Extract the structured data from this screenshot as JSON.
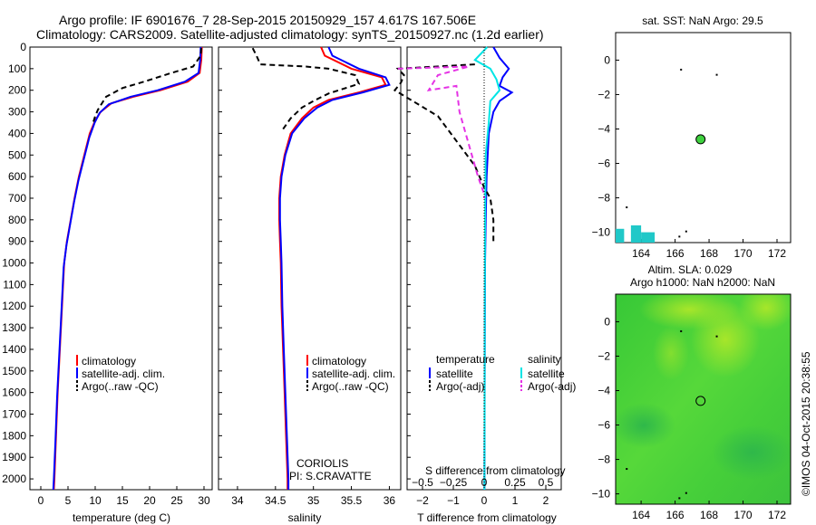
{
  "header": {
    "line1": "Argo profile: IF 6901676_7 28-Sep-2015 20150929_157 4.617S 167.506E",
    "line2": "Climatology: CARS2009. Satellite-adjusted climatology: synTS_20150927.nc (1.2d earlier)"
  },
  "colors": {
    "climatology": "#ff0000",
    "satellite": "#0000ff",
    "argo": "#000000",
    "satellite_s": "#00e5e5",
    "argo_s": "#e533e5",
    "sst_patch": "#20c8c8",
    "sla_green": "#3fd13f"
  },
  "chart_data": [
    {
      "type": "line",
      "name": "temperature-profile",
      "xlabel": "temperature (deg C)",
      "ylabel": "",
      "xlim": [
        -2,
        31.5
      ],
      "ylim": [
        2050,
        0
      ],
      "xticks": [
        0,
        5,
        10,
        15,
        20,
        25,
        30
      ],
      "yticks": [
        0,
        100,
        200,
        300,
        400,
        500,
        600,
        700,
        800,
        900,
        1000,
        1100,
        1200,
        1300,
        1400,
        1500,
        1600,
        1700,
        1800,
        1900,
        2000
      ],
      "legend": [
        "climatology",
        "satellite-adj. clim.",
        "Argo(..raw -QC)"
      ],
      "series": [
        {
          "name": "climatology",
          "style": "solid",
          "color": "#ff0000",
          "points": [
            [
              29.6,
              0
            ],
            [
              29.5,
              60
            ],
            [
              29.2,
              120
            ],
            [
              27,
              160
            ],
            [
              22,
              200
            ],
            [
              17,
              230
            ],
            [
              13,
              260
            ],
            [
              11,
              300
            ],
            [
              10,
              340
            ],
            [
              9,
              400
            ],
            [
              8,
              500
            ],
            [
              7,
              600
            ],
            [
              6.2,
              700
            ],
            [
              5.5,
              800
            ],
            [
              4.8,
              900
            ],
            [
              4.3,
              1000
            ],
            [
              3.9,
              1200
            ],
            [
              3.5,
              1400
            ],
            [
              3.1,
              1600
            ],
            [
              2.8,
              1800
            ],
            [
              2.5,
              2000
            ],
            [
              2.4,
              2050
            ]
          ]
        },
        {
          "name": "satellite-adj. clim.",
          "style": "solid",
          "color": "#0000ff",
          "points": [
            [
              29.4,
              0
            ],
            [
              29.3,
              60
            ],
            [
              29.0,
              120
            ],
            [
              26.5,
              160
            ],
            [
              21.5,
              200
            ],
            [
              16.5,
              230
            ],
            [
              12.5,
              265
            ],
            [
              10.8,
              305
            ],
            [
              9.9,
              350
            ],
            [
              8.9,
              420
            ],
            [
              7.9,
              520
            ],
            [
              6.9,
              620
            ],
            [
              6.1,
              720
            ],
            [
              5.4,
              820
            ],
            [
              4.7,
              920
            ],
            [
              4.2,
              1020
            ],
            [
              3.8,
              1220
            ],
            [
              3.4,
              1420
            ],
            [
              3.0,
              1620
            ],
            [
              2.7,
              1820
            ],
            [
              2.4,
              2000
            ],
            [
              2.3,
              2050
            ]
          ]
        },
        {
          "name": "Argo(..raw -QC)",
          "style": "dashed",
          "color": "#000000",
          "points": [
            [
              29.5,
              5
            ],
            [
              29.4,
              40
            ],
            [
              28,
              90
            ],
            [
              24,
              120
            ],
            [
              19,
              160
            ],
            [
              15,
              190
            ],
            [
              12,
              230
            ],
            [
              10.5,
              290
            ],
            [
              10,
              320
            ],
            [
              9.5,
              360
            ]
          ]
        }
      ],
      "text": []
    },
    {
      "type": "line",
      "name": "salinity-profile",
      "xlabel": "salinity",
      "ylabel": "",
      "xlim": [
        33.75,
        36.15
      ],
      "ylim": [
        2050,
        0
      ],
      "xticks": [
        34,
        34.5,
        35,
        35.5,
        36
      ],
      "legend": [
        "climatology",
        "satellite-adj. clim.",
        "Argo(..raw -QC)"
      ],
      "series": [
        {
          "name": "climatology",
          "style": "solid",
          "color": "#ff0000",
          "points": [
            [
              35.1,
              0
            ],
            [
              35.15,
              40
            ],
            [
              35.5,
              100
            ],
            [
              35.9,
              140
            ],
            [
              35.95,
              175
            ],
            [
              35.6,
              210
            ],
            [
              35.2,
              245
            ],
            [
              35.0,
              280
            ],
            [
              34.85,
              330
            ],
            [
              34.7,
              400
            ],
            [
              34.62,
              500
            ],
            [
              34.57,
              600
            ],
            [
              34.55,
              700
            ],
            [
              34.55,
              800
            ],
            [
              34.56,
              900
            ],
            [
              34.57,
              1000
            ],
            [
              34.58,
              1200
            ],
            [
              34.6,
              1400
            ],
            [
              34.62,
              1600
            ],
            [
              34.64,
              1800
            ],
            [
              34.66,
              2000
            ],
            [
              34.66,
              2050
            ]
          ]
        },
        {
          "name": "satellite-adj. clim.",
          "style": "solid",
          "color": "#0000ff",
          "points": [
            [
              35.2,
              0
            ],
            [
              35.25,
              40
            ],
            [
              35.6,
              100
            ],
            [
              35.95,
              140
            ],
            [
              36.0,
              175
            ],
            [
              35.65,
              210
            ],
            [
              35.25,
              245
            ],
            [
              35.05,
              280
            ],
            [
              34.88,
              330
            ],
            [
              34.72,
              400
            ],
            [
              34.63,
              500
            ],
            [
              34.58,
              600
            ],
            [
              34.56,
              700
            ],
            [
              34.56,
              800
            ],
            [
              34.57,
              900
            ],
            [
              34.58,
              1000
            ],
            [
              34.59,
              1200
            ],
            [
              34.61,
              1400
            ],
            [
              34.63,
              1600
            ],
            [
              34.65,
              1800
            ],
            [
              34.67,
              2000
            ],
            [
              34.67,
              2050
            ]
          ]
        },
        {
          "name": "Argo(..raw -QC)",
          "style": "dashed",
          "color": "#000000",
          "points": [
            [
              34.2,
              5
            ],
            [
              34.25,
              40
            ],
            [
              34.3,
              80
            ],
            [
              34.9,
              90
            ],
            [
              35.2,
              100
            ],
            [
              35.55,
              130
            ],
            [
              35.6,
              170
            ],
            [
              35.2,
              215
            ],
            [
              35.0,
              250
            ],
            [
              34.85,
              280
            ],
            [
              34.7,
              330
            ],
            [
              34.6,
              380
            ]
          ]
        }
      ],
      "text": [
        "CORIOLIS",
        "PI: S.CRAVATTE"
      ]
    },
    {
      "type": "line",
      "name": "difference-profile",
      "xlabel": "T difference from climatology",
      "title_bottom": "S difference from climatology",
      "xlim": [
        -2.5,
        2.5
      ],
      "ylim": [
        2050,
        0
      ],
      "xticks_t": [
        -2,
        -1,
        0,
        1,
        2
      ],
      "xticks_s": [
        -0.5,
        -0.25,
        0,
        0.25,
        0.5
      ],
      "xticks_s_labels": [
        "−0.5",
        "−0.25",
        "0",
        "0.25",
        "0.5"
      ],
      "xticks_t_labels": [
        "−2",
        "−1",
        "0",
        "1",
        "2"
      ],
      "legend_headers": [
        "temperature",
        "salinity"
      ],
      "legend": [
        "satellite",
        "Argo(-adj)",
        "satellite",
        "Argo(-adj)"
      ],
      "series": [
        {
          "name": "temperature satellite",
          "style": "solid",
          "color": "#0000ff",
          "points": [
            [
              0.3,
              0
            ],
            [
              0.5,
              50
            ],
            [
              0.8,
              100
            ],
            [
              0.6,
              140
            ],
            [
              0.5,
              180
            ],
            [
              0.9,
              210
            ],
            [
              0.5,
              250
            ],
            [
              0.3,
              300
            ],
            [
              0.15,
              400
            ],
            [
              0.08,
              600
            ],
            [
              0.05,
              800
            ],
            [
              0.03,
              1000
            ],
            [
              0.02,
              1400
            ],
            [
              0.01,
              2050
            ]
          ]
        },
        {
          "name": "temperature Argo(-adj)",
          "style": "dashed",
          "color": "#000000",
          "points": [
            [
              -0.3,
              80
            ],
            [
              -2.8,
              100
            ],
            [
              -2.6,
              130
            ],
            [
              -2.7,
              165
            ],
            [
              -2.9,
              200
            ],
            [
              -1.5,
              320
            ],
            [
              -0.3,
              550
            ],
            [
              0,
              650
            ],
            [
              0.2,
              700
            ],
            [
              0.3,
              800
            ],
            [
              0.3,
              900
            ]
          ]
        },
        {
          "name": "salinity satellite",
          "style": "solid",
          "color": "#00e5e5",
          "points": [
            [
              0.1,
              0
            ],
            [
              -0.3,
              60
            ],
            [
              0.2,
              100
            ],
            [
              0.4,
              150
            ],
            [
              0.5,
              200
            ],
            [
              0.2,
              250
            ],
            [
              0.15,
              350
            ],
            [
              0.05,
              500
            ],
            [
              0.03,
              800
            ],
            [
              0.02,
              1200
            ],
            [
              0.01,
              2050
            ]
          ]
        },
        {
          "name": "salinity Argo(-adj)",
          "style": "dashed",
          "color": "#e533e5",
          "points": [
            [
              -2.8,
              100
            ],
            [
              -0.5,
              90
            ],
            [
              -1.5,
              130
            ],
            [
              -1.8,
              200
            ],
            [
              -0.9,
              180
            ],
            [
              -0.8,
              300
            ],
            [
              -0.2,
              600
            ],
            [
              0,
              680
            ],
            [
              0,
              700
            ]
          ]
        }
      ],
      "text": []
    },
    {
      "type": "scatter",
      "name": "sst-map",
      "title": "sat. SST: NaN Argo: 29.5",
      "xlim": [
        162.5,
        172.8
      ],
      "ylim": [
        -10.6,
        1.6
      ],
      "xticks": [
        164,
        166,
        168,
        170,
        172
      ],
      "yticks": [
        0,
        -2,
        -4,
        -6,
        -8,
        -10
      ],
      "yticks_labels": [
        "0",
        "−2",
        "−4",
        "−6",
        "−8",
        "−10"
      ],
      "argo_position": [
        167.5,
        -4.6
      ],
      "patch_color": "#20c8c8"
    },
    {
      "type": "heatmap",
      "name": "sla-map",
      "title_line1": "Altim. SLA: 0.029",
      "title_line2": "Argo h1000: NaN h2000: NaN",
      "xlim": [
        162.5,
        172.8
      ],
      "ylim": [
        -10.6,
        1.6
      ],
      "xticks": [
        164,
        166,
        168,
        170,
        172
      ],
      "yticks": [
        0,
        -2,
        -4,
        -6,
        -8,
        -10
      ],
      "yticks_labels": [
        "0",
        "−2",
        "−4",
        "−6",
        "−8",
        "−10"
      ],
      "argo_position": [
        167.5,
        -4.6
      ]
    }
  ],
  "footer": {
    "credit": "©IMOS 04-Oct-2015 20:38:55"
  }
}
